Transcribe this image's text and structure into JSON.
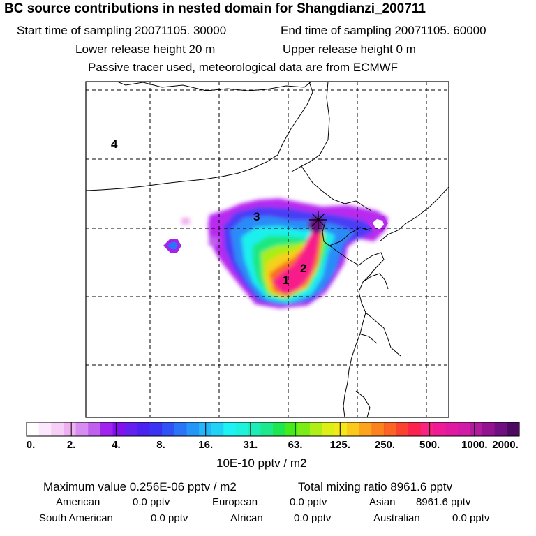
{
  "header": {
    "title": "BC  source contributions in nested domain for Shangdianzi_200711",
    "start_label": "Start time of sampling 20071105. 30000",
    "end_label": "End time of sampling 20071105. 60000",
    "lower_height": "Lower release height   20 m",
    "upper_height": "Upper release height    0 m",
    "tracer_note": "Passive tracer used, meteorological data are from ECMWF"
  },
  "map": {
    "region_labels": [
      "1",
      "2",
      "3",
      "4"
    ],
    "receptor_icon": "asterisk-star-icon"
  },
  "colorbar": {
    "tick_labels": [
      "0.",
      "2.",
      "4.",
      "8.",
      "16.",
      "31.",
      "63.",
      "125.",
      "250.",
      "500.",
      "1000.",
      "2000."
    ],
    "units": "10E-10 pptv / m2",
    "colors": [
      "#ffffff",
      "#fce8fc",
      "#f6cff6",
      "#eeb0f0",
      "#d68cf0",
      "#c060ee",
      "#a023ee",
      "#8410f0",
      "#6420ee",
      "#4a22f2",
      "#3a33f4",
      "#2f52f7",
      "#2a74f8",
      "#2496f8",
      "#24b6f8",
      "#22d2f6",
      "#1ef2f2",
      "#1ef2dc",
      "#1eecb8",
      "#1ee88c",
      "#1ee650",
      "#46ea1a",
      "#7cec16",
      "#b0ee18",
      "#dcf018",
      "#f5e81a",
      "#fbc81c",
      "#fca41c",
      "#fc8220",
      "#fb6424",
      "#fa4230",
      "#fb2250",
      "#f82280",
      "#ee1a96",
      "#e01aa0",
      "#d21aa8",
      "#b01a9c",
      "#921290",
      "#701080",
      "#4e0a60"
    ]
  },
  "summary": {
    "max_label": "Maximum value  0.256E-06 pptv / m2",
    "total_label": "Total mixing ratio     8961.6 pptv",
    "american_label": "American",
    "american_value": "0.0 pptv",
    "european_label": "European",
    "european_value": "0.0 pptv",
    "asian_label": "Asian",
    "asian_value": "8961.6 pptv",
    "south_american_label": "South American",
    "south_american_value": "0.0 pptv",
    "african_label": "African",
    "african_value": "0.0 pptv",
    "australian_label": "Australian",
    "australian_value": "0.0 pptv"
  }
}
